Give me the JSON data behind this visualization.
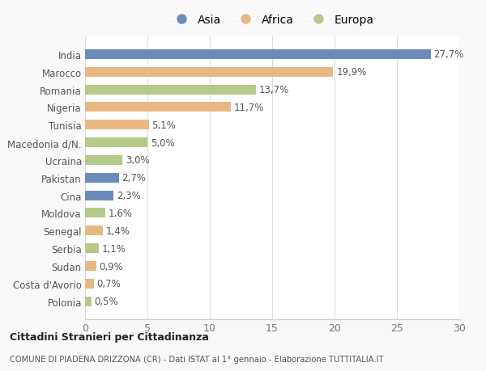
{
  "countries": [
    "India",
    "Marocco",
    "Romania",
    "Nigeria",
    "Tunisia",
    "Macedonia d/N.",
    "Ucraina",
    "Pakistan",
    "Cina",
    "Moldova",
    "Senegal",
    "Serbia",
    "Sudan",
    "Costa d'Avorio",
    "Polonia"
  ],
  "values": [
    27.7,
    19.9,
    13.7,
    11.7,
    5.1,
    5.0,
    3.0,
    2.7,
    2.3,
    1.6,
    1.4,
    1.1,
    0.9,
    0.7,
    0.5
  ],
  "labels": [
    "27,7%",
    "19,9%",
    "13,7%",
    "11,7%",
    "5,1%",
    "5,0%",
    "3,0%",
    "2,7%",
    "2,3%",
    "1,6%",
    "1,4%",
    "1,1%",
    "0,9%",
    "0,7%",
    "0,5%"
  ],
  "categories": [
    "Asia",
    "Africa",
    "Europa",
    "Africa",
    "Africa",
    "Europa",
    "Europa",
    "Asia",
    "Asia",
    "Europa",
    "Africa",
    "Europa",
    "Africa",
    "Africa",
    "Europa"
  ],
  "colors": {
    "Asia": "#6b8cba",
    "Africa": "#e8b882",
    "Europa": "#b5c98a"
  },
  "legend_labels": [
    "Asia",
    "Africa",
    "Europa"
  ],
  "title_bold": "Cittadini Stranieri per Cittadinanza",
  "subtitle": "COMUNE DI PIADENA DRIZZONA (CR) - Dati ISTAT al 1° gennaio - Elaborazione TUTTITALIA.IT",
  "xlim": [
    0,
    30
  ],
  "xticks": [
    0,
    5,
    10,
    15,
    20,
    25,
    30
  ],
  "background_color": "#f9f9f9",
  "bar_background": "#ffffff",
  "bar_height": 0.55,
  "label_fontsize": 8.5,
  "ytick_fontsize": 8.5,
  "xtick_fontsize": 9
}
